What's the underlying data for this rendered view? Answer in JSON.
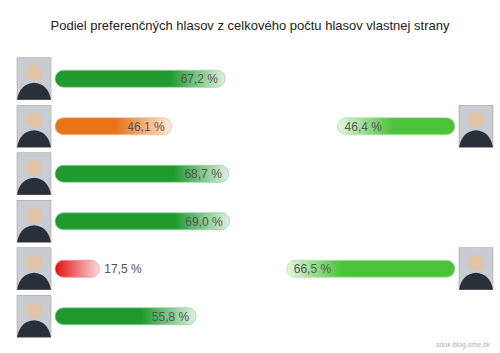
{
  "chart_data": {
    "type": "bar",
    "orientation": "horizontal",
    "title": "Podiel preferenčných hlasov z celkového počtu hlasov vlastnej strany",
    "categories": [
      null,
      null,
      null,
      null,
      null,
      null
    ],
    "xlim": [
      0,
      100
    ],
    "tick_labels": false,
    "data_labels": true,
    "series": [
      {
        "values": [
          67.2,
          46.1,
          68.7,
          69.0,
          17.5,
          55.8
        ],
        "value_labels": [
          "67,2 %",
          "46,1 %",
          "68,7 %",
          "69,0 %",
          "17,5 %",
          "55,8 %"
        ],
        "colors": [
          "#1e9a2e",
          "#e8741a",
          "#1e9a2e",
          "#1e9a2e",
          "#e01010",
          "#1e9a2e"
        ]
      },
      {
        "values": [
          null,
          46.4,
          null,
          null,
          66.5,
          null
        ],
        "value_labels": [
          null,
          "46,4 %",
          null,
          null,
          "66,5 %",
          null
        ],
        "color": "#4cc23a"
      }
    ],
    "annotations": [
      "sdok.blog.sme.sk"
    ]
  }
}
